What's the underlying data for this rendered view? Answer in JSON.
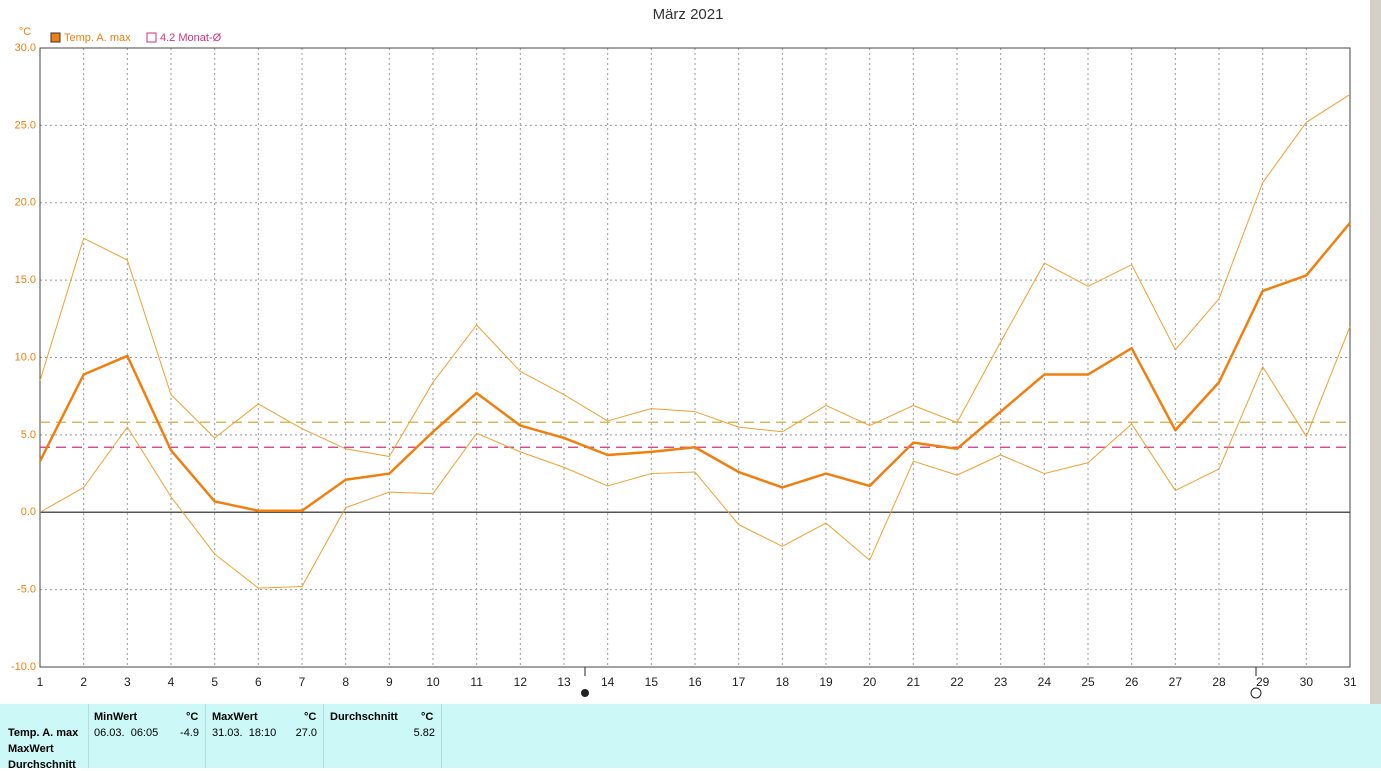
{
  "chart_data": {
    "type": "line",
    "title": "März 2021",
    "y_unit": "°C",
    "x": [
      1,
      2,
      3,
      4,
      5,
      6,
      7,
      8,
      9,
      10,
      11,
      12,
      13,
      14,
      15,
      16,
      17,
      18,
      19,
      20,
      21,
      22,
      23,
      24,
      25,
      26,
      27,
      28,
      29,
      30,
      31
    ],
    "xlim": [
      1,
      31
    ],
    "series": [
      {
        "name": "Temp. A. max",
        "color": "#f07f10",
        "width": 2.5,
        "values": [
          3.3,
          8.9,
          10.1,
          4.0,
          0.7,
          0.1,
          0.1,
          2.1,
          2.5,
          5.2,
          7.7,
          5.6,
          4.8,
          3.7,
          3.9,
          4.2,
          2.6,
          1.6,
          2.5,
          1.7,
          4.5,
          4.1,
          6.5,
          8.9,
          8.9,
          10.6,
          5.3,
          8.4,
          14.3,
          15.3,
          18.7
        ]
      },
      {
        "color": "#f0a030",
        "width": 1,
        "values": [
          8.5,
          17.7,
          16.3,
          7.6,
          4.8,
          7.0,
          5.4,
          4.1,
          3.6,
          8.4,
          12.1,
          9.1,
          7.6,
          5.9,
          6.7,
          6.5,
          5.5,
          5.2,
          6.9,
          5.6,
          6.9,
          5.8,
          11.0,
          16.1,
          14.6,
          16.0,
          10.5,
          13.8,
          21.3,
          25.2,
          27.0
        ]
      },
      {
        "color": "#f0a030",
        "width": 1,
        "values": [
          0.0,
          1.6,
          5.5,
          1.0,
          -2.7,
          -4.9,
          -4.8,
          0.3,
          1.3,
          1.2,
          5.1,
          3.9,
          2.9,
          1.7,
          2.5,
          2.6,
          -0.8,
          -2.2,
          -0.7,
          -3.1,
          3.3,
          2.4,
          3.7,
          2.5,
          3.2,
          5.7,
          1.4,
          2.8,
          9.4,
          4.9,
          12.0
        ]
      }
    ],
    "hlines": [
      {
        "value": 4.2,
        "label": "4.2 Monat-Ø",
        "color": "#d0307f"
      },
      {
        "value": 5.82,
        "color": "#d0a020"
      }
    ],
    "ylim": [
      -10,
      30
    ],
    "yticks": [
      {
        "value": -10,
        "label": "-10.0"
      },
      {
        "value": -5,
        "label": "-5.0"
      },
      {
        "value": 0,
        "label": "0.0"
      },
      {
        "value": 5,
        "label": "5.0"
      },
      {
        "value": 10,
        "label": "10.0"
      },
      {
        "value": 15,
        "label": "15.0"
      },
      {
        "value": 20,
        "label": "20.0"
      },
      {
        "value": 25,
        "label": "25.0"
      },
      {
        "value": 30,
        "label": "30.0"
      }
    ],
    "grid": true
  },
  "stats_table": {
    "headers": [
      "MinWert",
      "°C",
      "MaxWert",
      "°C",
      "Durchschnitt",
      "°C"
    ],
    "row_labels": [
      "Temp. A. max",
      "MaxWert",
      "Durchschnitt"
    ],
    "row": [
      "06.03.  06:05",
      "-4.9",
      "31.03.  18:10",
      "27.0",
      "5.82"
    ]
  }
}
